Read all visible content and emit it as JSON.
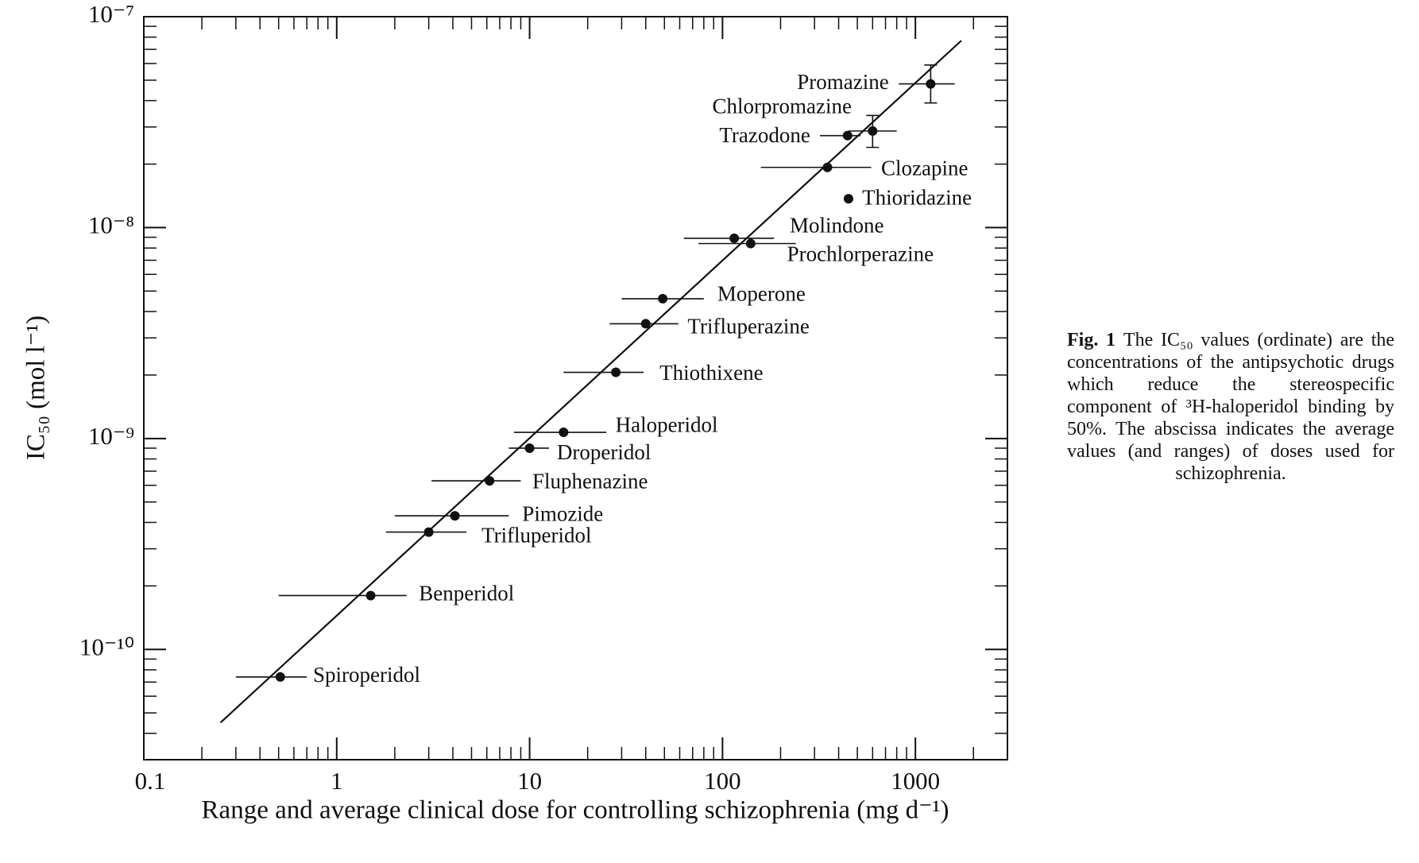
{
  "chart_data": {
    "type": "scatter",
    "x_label": "Range and average clinical dose for controlling schizophrenia (mg d⁻¹)",
    "y_label": "IC₅₀ (mol l⁻¹)",
    "log_x": true,
    "log_y": true,
    "minor_ticks": true,
    "xlim": [
      0.1,
      3000
    ],
    "xticks": [
      0.1,
      1,
      10,
      100,
      1000
    ],
    "ylim": [
      3e-11,
      1e-07
    ],
    "yticks": [
      {
        "value": 1e-10,
        "label": "10⁻¹⁰"
      },
      {
        "value": 1e-09,
        "label": "10⁻⁹"
      },
      {
        "value": 1e-08,
        "label": "10⁻⁸"
      },
      {
        "value": 1e-07,
        "label": "10⁻⁷"
      }
    ],
    "series": [
      {
        "color": "#111111",
        "labels": [
          "Spiroperidol",
          "Benperidol",
          "Trifluperidol",
          "Pimozide",
          "Fluphenazine",
          "Droperidol",
          "Haloperidol",
          "Thiothixene",
          "Trifluperazine",
          "Moperone",
          "Molindone",
          "Prochlorperazine",
          "Clozapine",
          "Thioridazine",
          "Trazodone",
          "Chlorpromazine",
          "Promazine"
        ],
        "x": [
          0.51,
          1.5,
          3.0,
          4.1,
          6.2,
          10,
          15,
          28,
          40,
          49,
          115,
          140,
          350,
          450,
          445,
          600,
          1200
        ],
        "values": [
          7.4e-11,
          1.8e-10,
          3.6e-10,
          4.3e-10,
          6.3e-10,
          9e-10,
          1.07e-09,
          2.06e-09,
          3.5e-09,
          4.6e-09,
          8.9e-09,
          8.4e-09,
          1.93e-08,
          1.37e-08,
          2.73e-08,
          2.87e-08,
          4.8e-08
        ],
        "x_low": [
          0.3,
          0.5,
          1.8,
          2.0,
          3.1,
          7.8,
          8.3,
          15,
          26,
          30,
          63,
          75,
          158,
          null,
          320,
          450,
          820
        ],
        "x_high": [
          0.7,
          2.3,
          4.7,
          7.8,
          9.0,
          12.6,
          25,
          39,
          59,
          80,
          185,
          240,
          590,
          null,
          520,
          800,
          1600
        ],
        "y_low": [
          null,
          null,
          null,
          null,
          null,
          null,
          null,
          null,
          null,
          null,
          null,
          null,
          null,
          null,
          null,
          2.4e-08,
          3.9e-08
        ],
        "y_high": [
          null,
          null,
          null,
          null,
          null,
          null,
          null,
          null,
          null,
          null,
          null,
          null,
          null,
          null,
          null,
          3.4e-08,
          5.9e-08
        ]
      }
    ],
    "fit_line": {
      "x": [
        0.25,
        1730
      ],
      "y": [
        4.5e-11,
        7.7e-08
      ]
    },
    "caption": {
      "label": "Fig. 1",
      "text": "The IC₅₀ values (ordinate) are the concentrations of the antipsychotic drugs which reduce the stereospecific component of ³H-haloperidol binding by 50%. The abscissa indicates the average values (and ranges) of doses used for schizophrenia."
    }
  }
}
